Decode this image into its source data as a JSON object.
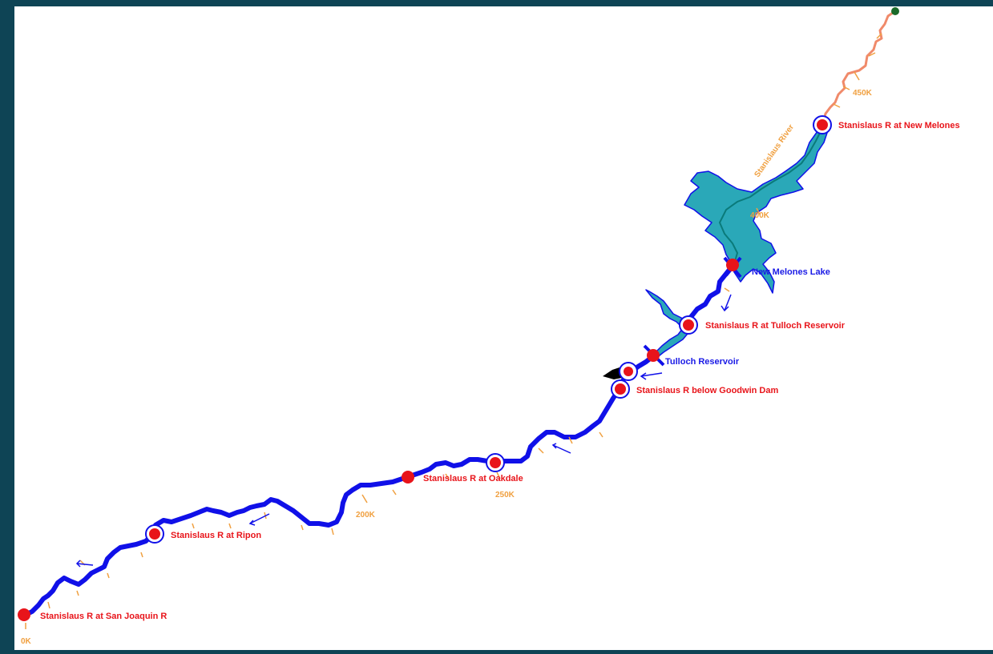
{
  "river": {
    "name": "Stanislaus River",
    "colors": {
      "main": "#1010e8",
      "upper": "#f08a6a",
      "reservoir": "#2aa8b8",
      "gauge": "#e8141a",
      "mileage": "#f0a040"
    }
  },
  "gauges": [
    {
      "name": "Stanislaus R at New Melones"
    },
    {
      "name": "Stanislaus R at Tulloch Reservoir"
    },
    {
      "name": "Stanislaus R below Goodwin Dam"
    },
    {
      "name": "Stanislaus R at Oakdale"
    },
    {
      "name": "Stanislaus R at Ripon"
    },
    {
      "name": "Stanislaus R at San Joaquin R"
    }
  ],
  "reservoirs": [
    {
      "name": "New Melones Lake"
    },
    {
      "name": "Tulloch Reservoir"
    }
  ],
  "mileage_markers": [
    "450K",
    "400K",
    "250K",
    "200K",
    "0K"
  ]
}
